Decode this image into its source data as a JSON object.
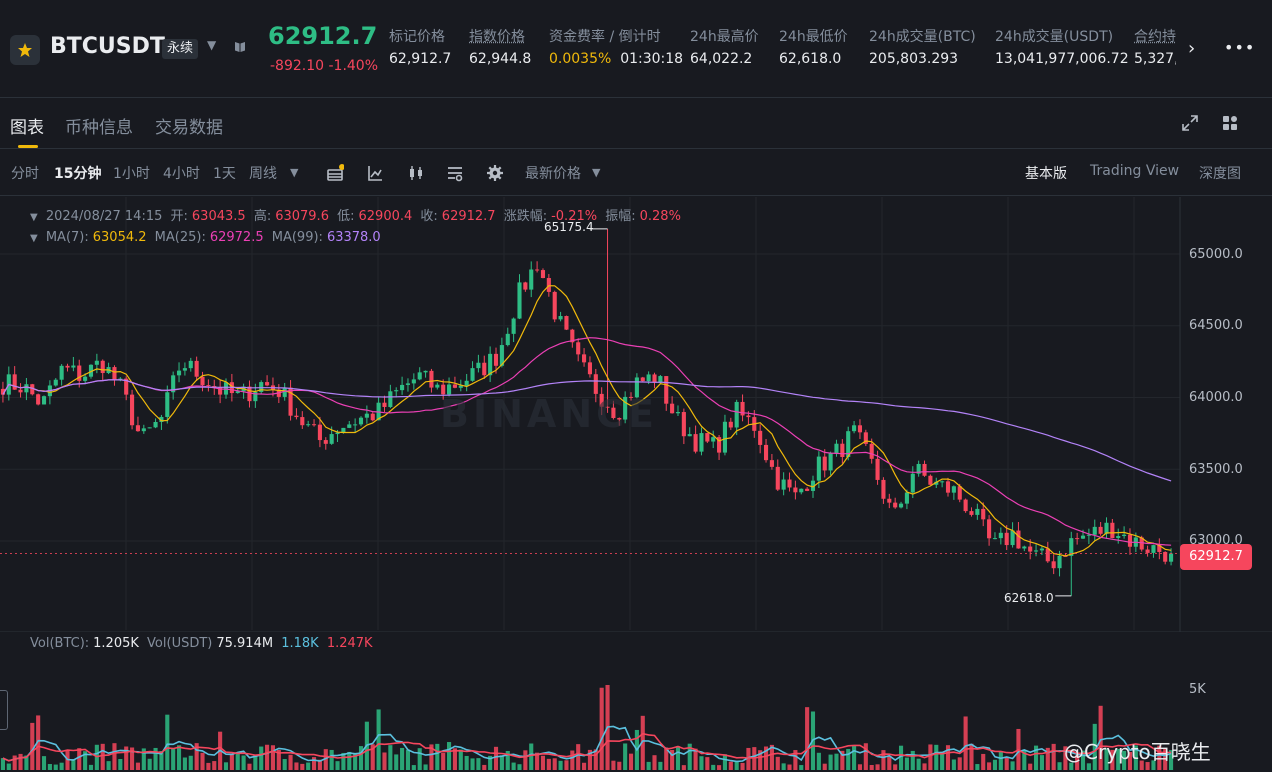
{
  "header": {
    "symbol": "BTCUSDT",
    "contract_type": "永续",
    "last_price": "62912.7",
    "change": "-892.10 -1.40%",
    "stats": [
      {
        "label": "标记价格",
        "value": "62,912.7"
      },
      {
        "label": "指数价格",
        "value": "62,944.8"
      },
      {
        "label": "资金费率 / 倒计时",
        "value": "0.0035%",
        "value2": "01:30:18"
      },
      {
        "label": "24h最高价",
        "value": "64,022.2"
      },
      {
        "label": "24h最低价",
        "value": "62,618.0"
      },
      {
        "label": "24h成交量(BTC)",
        "value": "205,803.293"
      },
      {
        "label": "24h成交量(USDT)",
        "value": "13,041,977,006.72"
      },
      {
        "label": "合约持",
        "value": "5,327,"
      }
    ]
  },
  "tabs": [
    "图表",
    "币种信息",
    "交易数据"
  ],
  "toolbar": {
    "intervals": [
      "分时",
      "15分钟",
      "1小时",
      "4小时",
      "1天",
      "周线"
    ],
    "price_type": "最新价格",
    "views": [
      "基本版",
      "Trading View",
      "深度图"
    ]
  },
  "legend": {
    "ohlc": {
      "date": "2024/08/27 14:15",
      "open_label": "开:",
      "open": "63043.5",
      "high_label": "高:",
      "high": "63079.6",
      "low_label": "低:",
      "low": "62900.4",
      "close_label": "收:",
      "close": "62912.7",
      "chg_label": "涨跌幅:",
      "chg": "-0.21%",
      "amp_label": "振幅:",
      "amp": "0.28%"
    },
    "ma": [
      {
        "label": "MA(7):",
        "value": "63054.2",
        "color": "#f0b90b"
      },
      {
        "label": "MA(25):",
        "value": "62972.5",
        "color": "#eb40b5"
      },
      {
        "label": "MA(99):",
        "value": "63378.0",
        "color": "#b383f8"
      }
    ],
    "vol": {
      "btc_label": "Vol(BTC):",
      "btc": "1.205K",
      "usdt_label": "Vol(USDT)",
      "usdt": "75.914M",
      "ma1": "1.18K",
      "ma2": "1.247K"
    }
  },
  "axis": {
    "y_ticks": [
      "65000.0",
      "64500.0",
      "64000.0",
      "63500.0",
      "63000.0"
    ],
    "vol_tick": "5K",
    "current_price": "62912.7",
    "high_marker": "65175.4",
    "low_marker": "62618.0"
  },
  "watermark": "BINANCE",
  "credit": "@Crypto百晓生",
  "colors": {
    "up": "#2ebd85",
    "down": "#f6465d",
    "accent": "#f0b90b",
    "bg": "#181a20"
  },
  "chart_data": {
    "type": "candlestick",
    "interval": "15分钟",
    "series": [
      {
        "name": "MA(7)",
        "color": "#f0b90b"
      },
      {
        "name": "MA(25)",
        "color": "#eb40b5"
      },
      {
        "name": "MA(99)",
        "color": "#b383f8"
      }
    ],
    "ylim": [
      62300,
      65300
    ],
    "close_path": [
      64100,
      64080,
      63950,
      64200,
      64150,
      64250,
      64050,
      63700,
      63850,
      64250,
      64150,
      64050,
      64000,
      64100,
      64050,
      63850,
      63700,
      63800,
      63850,
      63900,
      64050,
      64150,
      64050,
      64100,
      64180,
      64300,
      64700,
      64950,
      64550,
      64250,
      64050,
      63900,
      64100,
      64150,
      63850,
      63700,
      63650,
      63900,
      63800,
      63450,
      63300,
      63500,
      63600,
      63750,
      63500,
      63150,
      63500,
      63400,
      63350,
      63200,
      62950,
      63050,
      62900,
      62850,
      63000,
      63050,
      63100,
      63000,
      62950,
      62912.7
    ],
    "high": 65175.4,
    "low": 62618.0,
    "volume_ylim": [
      0,
      6000
    ]
  }
}
